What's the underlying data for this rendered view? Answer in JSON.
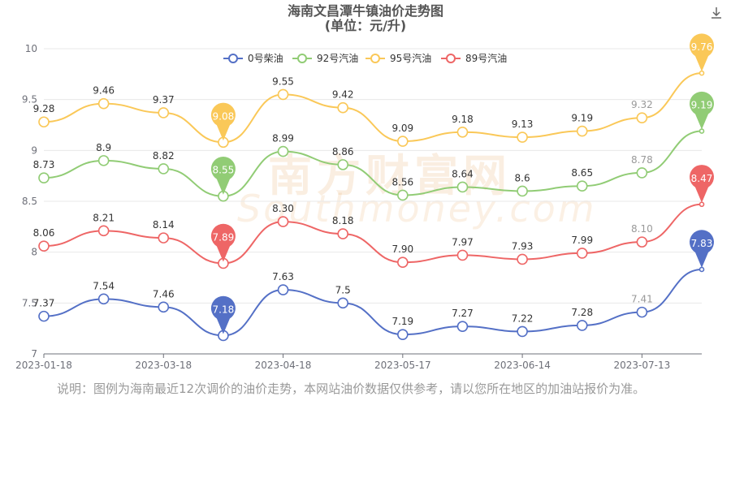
{
  "title_line1": "海南文昌潭牛镇油价走势图",
  "title_line2": "(单位：元/升)",
  "download_icon": "download-icon",
  "watermark": {
    "cn": "南方财富网",
    "en": "Southmoney.com"
  },
  "note": "说明：图例为海南最近12次调价的油价走势，本网站油价数据仅供参考，请以您所在地区的加油站报价为准。",
  "chart_data": {
    "type": "line",
    "title": "海南文昌潭牛镇油价走势图",
    "subtitle": "(单位：元/升)",
    "xlabel": "",
    "ylabel": "",
    "ylim": [
      7,
      10
    ],
    "y_ticks": [
      "7",
      "7.5",
      "8",
      "8.5",
      "9",
      "9.5",
      "10"
    ],
    "y_tick_values": [
      7,
      7.5,
      8,
      8.5,
      9,
      9.5,
      10
    ],
    "x_tick_labels": [
      "2023-01-18",
      "2023-03-18",
      "2023-04-18",
      "2023-05-17",
      "2023-06-14",
      "2023-07-13"
    ],
    "x_tick_indices": [
      0,
      2,
      4,
      6,
      8,
      10
    ],
    "grid": true,
    "legend_position": "top",
    "series": [
      {
        "name": "0号柴油",
        "color": "#5470c6",
        "labels": [
          "7.37",
          "7.54",
          "7.46",
          "7.18",
          "7.63",
          "7.5",
          "7.19",
          "7.27",
          "7.22",
          "7.28",
          "7.41",
          "7.83"
        ],
        "values": [
          7.37,
          7.54,
          7.46,
          7.18,
          7.63,
          7.5,
          7.19,
          7.27,
          7.22,
          7.28,
          7.41,
          7.83
        ],
        "min_index": 3,
        "max_index": 11
      },
      {
        "name": "92号汽油",
        "color": "#91cc75",
        "labels": [
          "8.73",
          "8.9",
          "8.82",
          "8.55",
          "8.99",
          "8.86",
          "8.56",
          "8.64",
          "8.6",
          "8.65",
          "8.78",
          "9.19"
        ],
        "values": [
          8.73,
          8.9,
          8.82,
          8.55,
          8.99,
          8.86,
          8.56,
          8.64,
          8.6,
          8.65,
          8.78,
          9.19
        ],
        "min_index": 3,
        "max_index": 11
      },
      {
        "name": "95号汽油",
        "color": "#fac858",
        "labels": [
          "9.28",
          "9.46",
          "9.37",
          "9.08",
          "9.55",
          "9.42",
          "9.09",
          "9.18",
          "9.13",
          "9.19",
          "9.32",
          "9.76"
        ],
        "values": [
          9.28,
          9.46,
          9.37,
          9.08,
          9.55,
          9.42,
          9.09,
          9.18,
          9.13,
          9.19,
          9.32,
          9.76
        ],
        "min_index": 3,
        "max_index": 11
      },
      {
        "name": "89号汽油",
        "color": "#ee6666",
        "labels": [
          "8.06",
          "8.21",
          "8.14",
          "7.89",
          "8.30",
          "8.18",
          "7.90",
          "7.97",
          "7.93",
          "7.99",
          "8.10",
          "8.47"
        ],
        "values": [
          8.06,
          8.21,
          8.14,
          7.89,
          8.3,
          8.18,
          7.9,
          7.97,
          7.93,
          7.99,
          8.1,
          8.47
        ],
        "min_index": 3,
        "max_index": 11
      }
    ]
  }
}
